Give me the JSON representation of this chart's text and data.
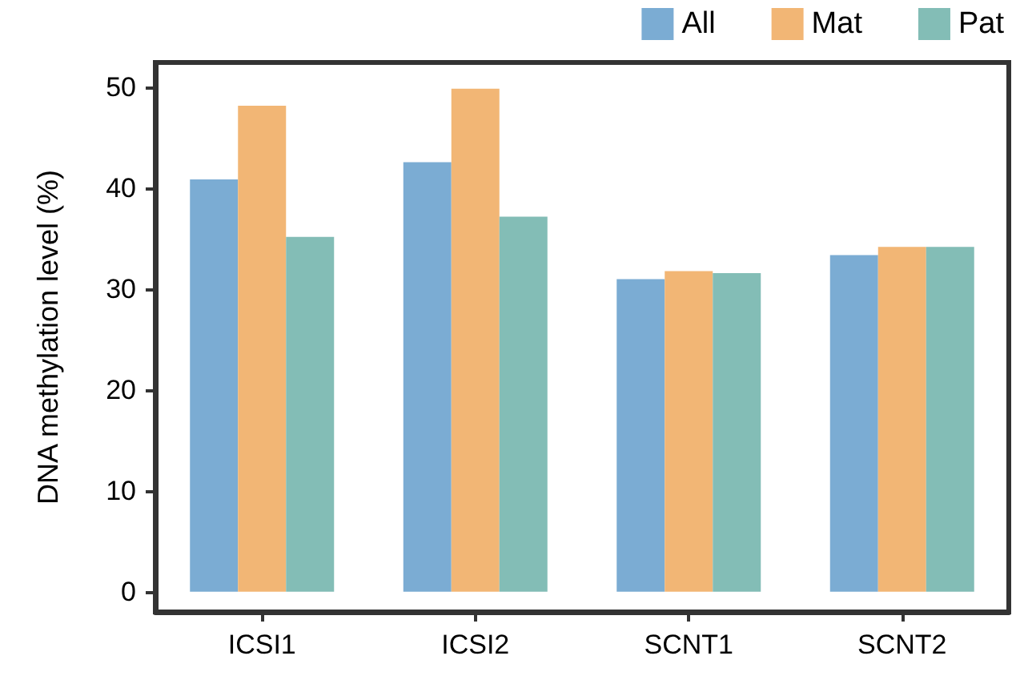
{
  "chart_data": {
    "type": "bar",
    "ylabel": "DNA methylation level (%)",
    "categories": [
      "ICSI1",
      "ICSI2",
      "SCNT1",
      "SCNT2"
    ],
    "series": [
      {
        "name": "All",
        "color": "#7bacd3",
        "values": [
          40.9,
          42.6,
          31.0,
          33.4
        ]
      },
      {
        "name": "Mat",
        "color": "#f2b675",
        "values": [
          48.2,
          49.9,
          31.8,
          34.2
        ]
      },
      {
        "name": "Pat",
        "color": "#83bdb6",
        "values": [
          35.2,
          37.2,
          31.6,
          34.2
        ]
      }
    ],
    "ylim": [
      -2,
      52.5
    ],
    "yticks": [
      0,
      10,
      20,
      30,
      40,
      50
    ],
    "grid": false,
    "legend": "top right"
  }
}
